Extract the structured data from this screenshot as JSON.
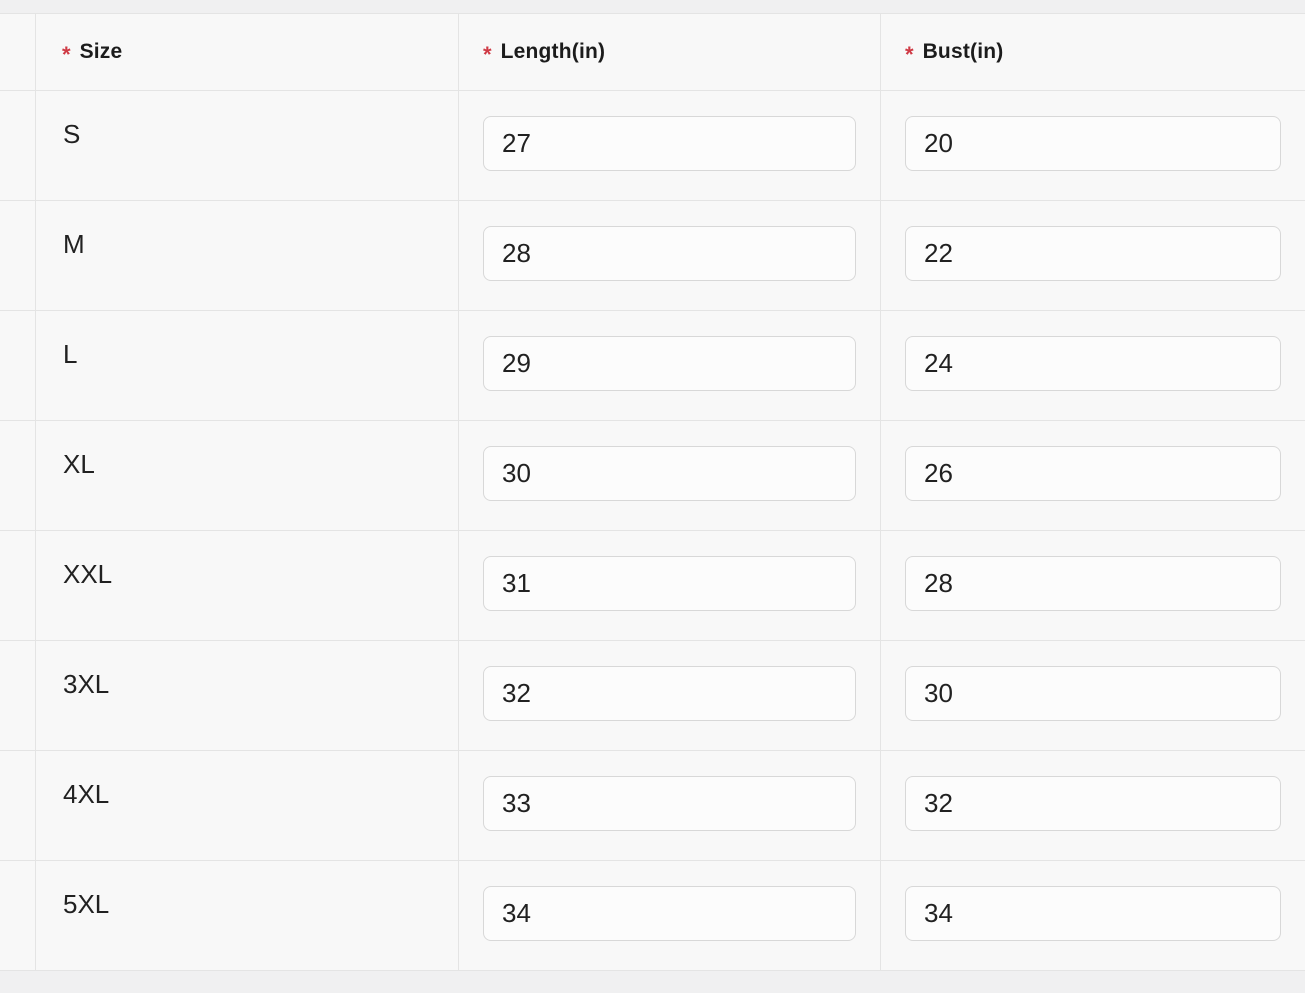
{
  "table": {
    "required_marker": "*",
    "columns": [
      {
        "key": "size",
        "label": "Size",
        "required": true
      },
      {
        "key": "length",
        "label": "Length(in)",
        "required": true
      },
      {
        "key": "bust",
        "label": "Bust(in)",
        "required": true
      }
    ],
    "rows": [
      {
        "size": "S",
        "length": "27",
        "bust": "20"
      },
      {
        "size": "M",
        "length": "28",
        "bust": "22"
      },
      {
        "size": "L",
        "length": "29",
        "bust": "24"
      },
      {
        "size": "XL",
        "length": "30",
        "bust": "26"
      },
      {
        "size": "XXL",
        "length": "31",
        "bust": "28"
      },
      {
        "size": "3XL",
        "length": "32",
        "bust": "30"
      },
      {
        "size": "4XL",
        "length": "33",
        "bust": "32"
      },
      {
        "size": "5XL",
        "length": "34",
        "bust": "34"
      }
    ]
  },
  "colors": {
    "required_asterisk": "#cf3a45",
    "cell_background": "#f8f8f8",
    "page_background": "#f0f0f1",
    "border": "#e4e4e4",
    "input_border": "#d8d8d8",
    "input_background": "#fcfcfc",
    "text": "#212121"
  }
}
